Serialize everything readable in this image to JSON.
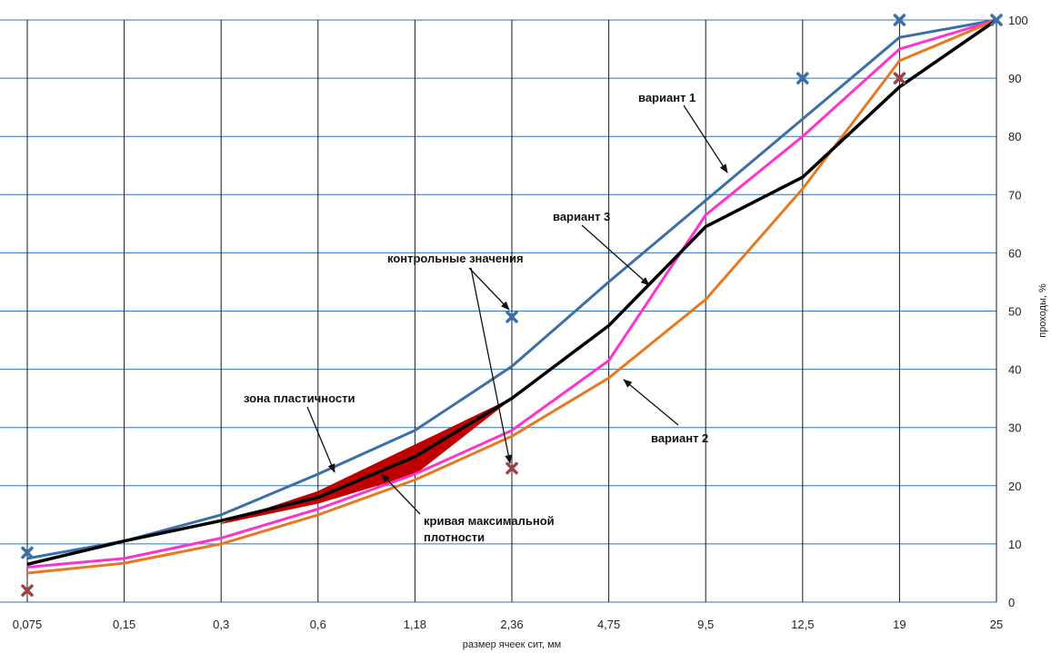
{
  "chart_data": {
    "type": "line",
    "x_type": "categorical",
    "categories": [
      "0,075",
      "0,15",
      "0,3",
      "0,6",
      "1,18",
      "2,36",
      "4,75",
      "9,5",
      "12,5",
      "19",
      "25"
    ],
    "xlabel": "размер ячеек сит, мм",
    "ylabel": "проходы, %",
    "ylim": [
      0,
      100
    ],
    "yticks": [
      0,
      10,
      20,
      30,
      40,
      50,
      60,
      70,
      80,
      90,
      100
    ],
    "y_axis_side": "right",
    "grid": true,
    "colors": {
      "grid_horizontal": "#2e75b6",
      "grid_vertical": "#1a1a1a",
      "zone_fill": "#c00000"
    },
    "series": [
      {
        "name": "вариант 1",
        "color": "#3b6fa8",
        "values": [
          7.5,
          10.5,
          15,
          22,
          29.5,
          40.5,
          55,
          69,
          83,
          97,
          100
        ]
      },
      {
        "color": "#ff33cc",
        "values": [
          6,
          7.5,
          11,
          16,
          22,
          29.5,
          41.5,
          66.5,
          80,
          95,
          100
        ]
      },
      {
        "name": "вариант 2",
        "color": "#e8791e",
        "values": [
          5,
          6.7,
          10,
          15,
          21,
          28.5,
          38.5,
          52,
          71,
          93,
          100
        ]
      },
      {
        "name": "вариант 3",
        "color": "#000000",
        "values": [
          6.5,
          10.5,
          14,
          18,
          25,
          35,
          47.5,
          64.5,
          73,
          88.5,
          100
        ]
      }
    ],
    "control_points": [
      {
        "category": "0,075",
        "value": 8.5,
        "color": "#3b6fa8"
      },
      {
        "category": "0,075",
        "value": 2,
        "color": "#a04040"
      },
      {
        "category": "2,36",
        "value": 49,
        "color": "#3b6fa8"
      },
      {
        "category": "2,36",
        "value": 23,
        "color": "#a04040"
      },
      {
        "category": "12,5",
        "value": 90,
        "color": "#3b6fa8"
      },
      {
        "category": "19",
        "value": 100,
        "color": "#3b6fa8"
      },
      {
        "category": "19",
        "value": 90,
        "color": "#a04040"
      },
      {
        "category": "25",
        "value": 100,
        "color": "#3b6fa8"
      }
    ],
    "zone": {
      "label": "зона пластичности",
      "color": "#c00000",
      "upper": [
        [
          2,
          13.5
        ],
        [
          3,
          19
        ],
        [
          4,
          27
        ],
        [
          5,
          35
        ]
      ],
      "lower": [
        [
          2,
          13.5
        ],
        [
          3,
          17
        ],
        [
          4,
          22
        ],
        [
          5,
          35
        ]
      ]
    },
    "annotations": [
      {
        "id": "variant1",
        "text": "вариант 1"
      },
      {
        "id": "variant3",
        "text": "вариант 3"
      },
      {
        "id": "control",
        "text": "контрольные значения"
      },
      {
        "id": "zone",
        "text": "зона пластичности"
      },
      {
        "id": "maxdensity",
        "lines": [
          "кривая максимальной",
          "плотности"
        ]
      },
      {
        "id": "variant2",
        "text": "вариант 2"
      }
    ]
  }
}
